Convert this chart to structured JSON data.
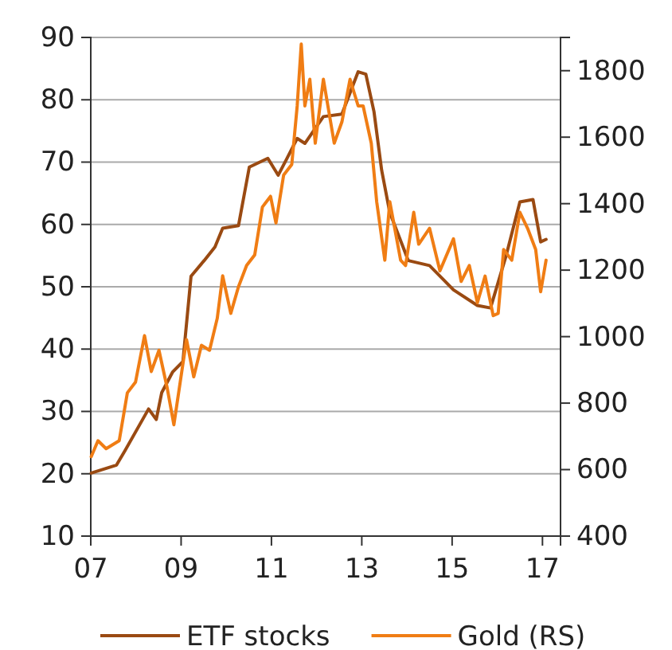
{
  "chart_data": {
    "type": "line",
    "xlim": [
      2007,
      2017.4
    ],
    "xticks": [
      {
        "value": 2007,
        "label": "07"
      },
      {
        "value": 2009,
        "label": "09"
      },
      {
        "value": 2011,
        "label": "11"
      },
      {
        "value": 2013,
        "label": "13"
      },
      {
        "value": 2015,
        "label": "15"
      },
      {
        "value": 2017,
        "label": "17"
      }
    ],
    "ylim": [
      10,
      90
    ],
    "yticks": [
      10,
      20,
      30,
      40,
      50,
      60,
      70,
      80,
      90
    ],
    "y2lim": [
      400,
      1900
    ],
    "y2ticks": [
      400,
      600,
      800,
      1000,
      1200,
      1400,
      1600,
      1800
    ],
    "grid": "y",
    "legend": "bottom",
    "series": [
      {
        "name": "ETF stocks",
        "color": "#9a4a12",
        "x": [
          2007.01,
          2007.57,
          2007.75,
          2008.28,
          2008.45,
          2008.57,
          2008.81,
          2009.04,
          2009.22,
          2009.51,
          2009.75,
          2009.92,
          2010.27,
          2010.51,
          2010.92,
          2011.15,
          2011.33,
          2011.57,
          2011.74,
          2012.15,
          2012.56,
          2012.92,
          2013.09,
          2013.27,
          2013.44,
          2013.62,
          2014.03,
          2014.5,
          2015.03,
          2015.56,
          2015.85,
          2016.2,
          2016.5,
          2016.79,
          2016.96,
          2017.08
        ],
        "values": [
          20.1,
          21.4,
          23.6,
          30.4,
          28.7,
          33.0,
          36.3,
          38.0,
          51.7,
          54.2,
          56.4,
          59.4,
          59.8,
          69.2,
          70.6,
          67.9,
          70.4,
          73.8,
          73.0,
          77.3,
          77.7,
          84.5,
          84.1,
          78.1,
          68.7,
          61.9,
          54.2,
          53.4,
          49.5,
          47.0,
          46.6,
          55.1,
          63.6,
          64.0,
          57.2,
          57.6
        ]
      },
      {
        "name": "Gold (RS)",
        "color": "#f07d14",
        "axis": "y2",
        "x": [
          2007.01,
          2007.16,
          2007.34,
          2007.63,
          2007.81,
          2007.99,
          2008.19,
          2008.34,
          2008.51,
          2008.69,
          2008.84,
          2008.98,
          2009.12,
          2009.28,
          2009.45,
          2009.63,
          2009.8,
          2009.92,
          2010.1,
          2010.27,
          2010.45,
          2010.63,
          2010.8,
          2010.98,
          2011.1,
          2011.27,
          2011.45,
          2011.57,
          2011.66,
          2011.74,
          2011.85,
          2011.97,
          2012.15,
          2012.39,
          2012.56,
          2012.74,
          2012.92,
          2013.03,
          2013.21,
          2013.33,
          2013.51,
          2013.62,
          2013.86,
          2013.97,
          2014.15,
          2014.26,
          2014.5,
          2014.73,
          2015.03,
          2015.2,
          2015.38,
          2015.56,
          2015.73,
          2015.91,
          2016.02,
          2016.14,
          2016.32,
          2016.5,
          2016.67,
          2016.85,
          2016.96,
          2017.08
        ],
        "values": [
          639,
          687,
          663,
          687,
          831,
          863,
          1003,
          895,
          959,
          847,
          735,
          863,
          991,
          879,
          974,
          959,
          1055,
          1183,
          1070,
          1150,
          1214,
          1246,
          1390,
          1422,
          1342,
          1486,
          1518,
          1694,
          1880,
          1694,
          1774,
          1582,
          1774,
          1582,
          1646,
          1774,
          1694,
          1694,
          1582,
          1406,
          1230,
          1406,
          1230,
          1214,
          1374,
          1278,
          1326,
          1198,
          1294,
          1166,
          1214,
          1102,
          1182,
          1063,
          1070,
          1262,
          1230,
          1374,
          1326,
          1262,
          1135,
          1230
        ]
      }
    ]
  }
}
